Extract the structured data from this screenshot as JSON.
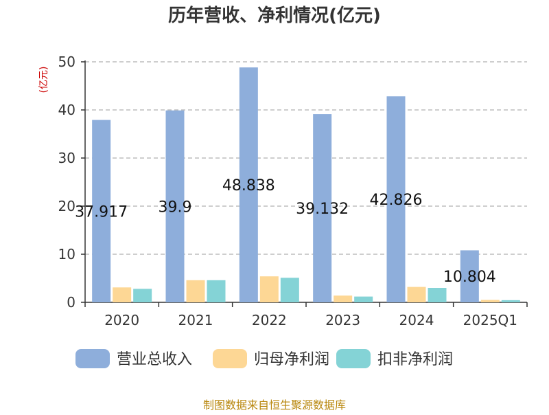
{
  "chart_data": {
    "type": "bar",
    "title": "历年营收、净利情况(亿元)",
    "ylabel": "(亿元)",
    "categories": [
      "2020",
      "2021",
      "2022",
      "2023",
      "2024",
      "2025Q1"
    ],
    "yticks": [
      "0",
      "10",
      "20",
      "30",
      "40",
      "50"
    ],
    "ylim": [
      0,
      50
    ],
    "grid": true,
    "legend_position": "bottom",
    "series": [
      {
        "name": "营业总收入",
        "color": "#8eaedb",
        "values": [
          37.917,
          39.9,
          48.838,
          39.132,
          42.826,
          10.804
        ],
        "labels": [
          "37.917",
          "39.9",
          "48.838",
          "39.132",
          "42.826",
          "10.804"
        ]
      },
      {
        "name": "归母净利润",
        "color": "#fdd795",
        "values": [
          3.1,
          4.6,
          5.4,
          1.4,
          3.2,
          0.5
        ]
      },
      {
        "name": "扣非净利润",
        "color": "#84d3d6",
        "values": [
          2.8,
          4.6,
          5.1,
          1.2,
          3.0,
          0.45
        ]
      }
    ],
    "source": "制图数据来自恒生聚源数据库"
  }
}
